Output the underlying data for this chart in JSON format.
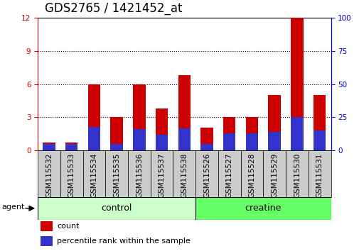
{
  "title": "GDS2765 / 1421452_at",
  "categories": [
    "GSM115532",
    "GSM115533",
    "GSM115534",
    "GSM115535",
    "GSM115536",
    "GSM115537",
    "GSM115538",
    "GSM115526",
    "GSM115527",
    "GSM115528",
    "GSM115529",
    "GSM115530",
    "GSM115531"
  ],
  "count_values": [
    0.7,
    0.7,
    6.0,
    3.0,
    6.0,
    3.8,
    6.8,
    2.1,
    3.0,
    3.0,
    5.0,
    12.0,
    5.0
  ],
  "percentile_values": [
    5.0,
    5.0,
    18.0,
    5.0,
    16.0,
    12.0,
    17.0,
    5.0,
    13.0,
    13.0,
    14.0,
    25.0,
    15.0
  ],
  "count_color": "#cc0000",
  "percentile_color": "#3333cc",
  "bar_width": 0.55,
  "ylim_left": [
    0,
    12
  ],
  "ylim_right": [
    0,
    100
  ],
  "yticks_left": [
    0,
    3,
    6,
    9,
    12
  ],
  "yticks_right": [
    0,
    25,
    50,
    75,
    100
  ],
  "groups": [
    {
      "label": "control",
      "indices": [
        0,
        1,
        2,
        3,
        4,
        5,
        6
      ],
      "color": "#ccffcc"
    },
    {
      "label": "creatine",
      "indices": [
        7,
        8,
        9,
        10,
        11,
        12
      ],
      "color": "#66ff66"
    }
  ],
  "agent_label": "agent",
  "legend_count_label": "count",
  "legend_percentile_label": "percentile rank within the sample",
  "title_fontsize": 12,
  "tick_fontsize": 7.5,
  "background_color": "#ffffff",
  "plot_bg_color": "#ffffff",
  "grid_color": "#000000",
  "right_axis_color": "#0000cc",
  "left_axis_color": "#cc0000",
  "xtick_bg_color": "#cccccc"
}
